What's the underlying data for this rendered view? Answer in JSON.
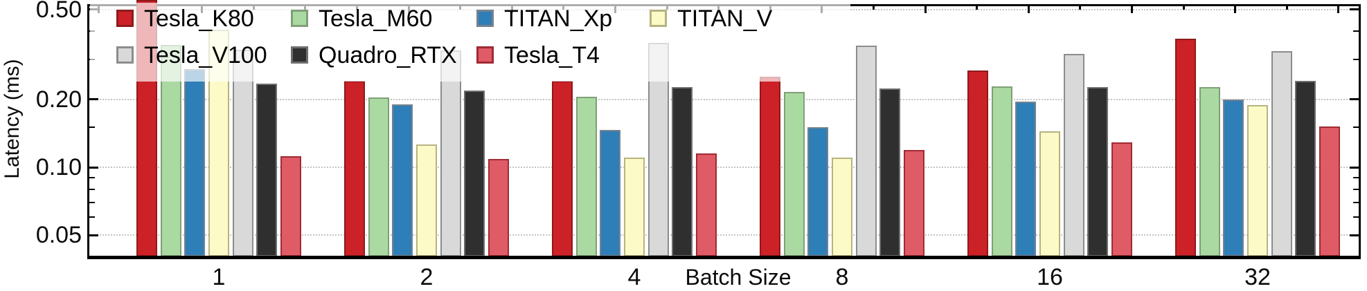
{
  "chart_data": {
    "type": "bar",
    "title": "",
    "xlabel": "Batch Size",
    "ylabel": "Latency (ms)",
    "yscale": "log",
    "ylim": [
      0.039,
      0.555
    ],
    "grid": "horizontal dotted at major y ticks",
    "legend_position": "upper-left inside plot, translucent white background, 2 rows",
    "categories": [
      "1",
      "2",
      "4",
      "8",
      "16",
      "32"
    ],
    "yticks": {
      "values": [
        0.05,
        0.1,
        0.2,
        0.5
      ],
      "labels": [
        "0.05",
        "0.10",
        "0.20",
        "0.50"
      ]
    },
    "minor_yticks": [
      0.06,
      0.07,
      0.08,
      0.09,
      0.15,
      0.3,
      0.4
    ],
    "series": [
      {
        "name": "Tesla_K80",
        "color": "#cc2127",
        "edge": "#8e1a1a",
        "values": [
          0.55,
          0.242,
          0.242,
          0.251,
          0.269,
          0.37
        ],
        "note_first_bar": "clipped at top of plot"
      },
      {
        "name": "Tesla_M60",
        "color": "#abd9a2",
        "edge": "#7f9f78",
        "values": [
          0.348,
          0.204,
          0.206,
          0.215,
          0.228,
          0.226
        ]
      },
      {
        "name": "TITAN_Xp",
        "color": "#2e7eb8",
        "edge": "#76828c",
        "values": [
          0.273,
          0.19,
          0.146,
          0.151,
          0.196,
          0.2
        ]
      },
      {
        "name": "TITAN_V",
        "color": "#fcfbc8",
        "edge": "#b5b380",
        "values": [
          0.406,
          0.126,
          0.11,
          0.11,
          0.144,
          0.188
        ]
      },
      {
        "name": "Tesla_V100",
        "color": "#d9d9d9",
        "edge": "#8c8c8c",
        "values": [
          0.332,
          0.33,
          0.357,
          0.347,
          0.317,
          0.328
        ]
      },
      {
        "name": "Quadro_RTX",
        "color": "#2f2f2f",
        "edge": "#6e6e6e",
        "values": [
          0.234,
          0.219,
          0.226,
          0.224,
          0.226,
          0.242
        ]
      },
      {
        "name": "Tesla_T4",
        "color": "#df5b66",
        "edge": "#a02a35",
        "values": [
          0.112,
          0.109,
          0.115,
          0.119,
          0.129,
          0.152
        ]
      }
    ],
    "legend_rows": [
      [
        "Tesla_K80",
        "Tesla_M60",
        "TITAN_Xp",
        "TITAN_V"
      ],
      [
        "Tesla_V100",
        "Quadro_RTX",
        "Tesla_T4"
      ]
    ]
  }
}
